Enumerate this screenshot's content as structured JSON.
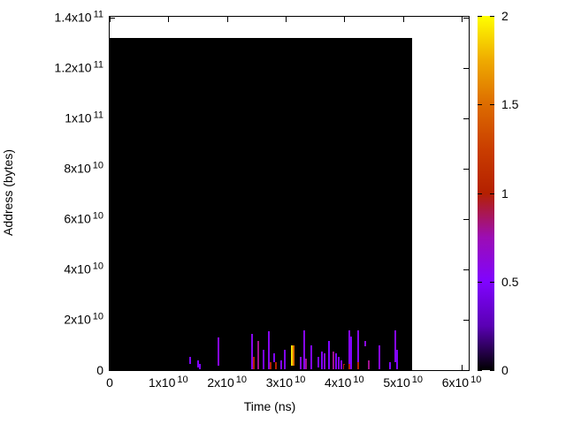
{
  "figure": {
    "xlabel": "Time (ns)",
    "ylabel": "Address (bytes)"
  },
  "chart_data": {
    "type": "heatmap",
    "title": "",
    "xlabel": "Time (ns)",
    "ylabel": "Address (bytes)",
    "xlim": [
      0,
      61200000000.0
    ],
    "ylim": [
      0,
      140400000000.0
    ],
    "grid": false,
    "legend": "colorbar-right",
    "background_color": "#ffffff",
    "zero_value_color": "#000000",
    "xticks": [
      {
        "v": 0,
        "base": "0",
        "exp": ""
      },
      {
        "v": 10000000000.0,
        "base": "1x10",
        "exp": "10"
      },
      {
        "v": 20000000000.0,
        "base": "2x10",
        "exp": "10"
      },
      {
        "v": 30000000000.0,
        "base": "3x10",
        "exp": "10"
      },
      {
        "v": 40000000000.0,
        "base": "4x10",
        "exp": "10"
      },
      {
        "v": 50000000000.0,
        "base": "5x10",
        "exp": "10"
      },
      {
        "v": 60000000000.0,
        "base": "6x10",
        "exp": "10"
      }
    ],
    "yticks": [
      {
        "v": 0,
        "base": "0",
        "exp": ""
      },
      {
        "v": 20000000000.0,
        "base": "2x10",
        "exp": "10"
      },
      {
        "v": 40000000000.0,
        "base": "4x10",
        "exp": "10"
      },
      {
        "v": 60000000000.0,
        "base": "6x10",
        "exp": "10"
      },
      {
        "v": 80000000000.0,
        "base": "8x10",
        "exp": "10"
      },
      {
        "v": 100000000000.0,
        "base": "1x10",
        "exp": "11"
      },
      {
        "v": 120000000000.0,
        "base": "1.2x10",
        "exp": "11"
      },
      {
        "v": 140000000000.0,
        "base": "1.4x10",
        "exp": "11"
      }
    ],
    "colorbar": {
      "range": [
        0,
        2
      ],
      "ticks": [
        {
          "v": 0,
          "label": "0"
        },
        {
          "v": 0.5,
          "label": "0.5"
        },
        {
          "v": 1,
          "label": "1"
        },
        {
          "v": 1.5,
          "label": "1.5"
        },
        {
          "v": 2,
          "label": "2"
        }
      ],
      "palette_stops": [
        "#000000",
        "#5A00B4",
        "#8004FF",
        "#9C0DB4",
        "#B42000",
        "#CA3E00",
        "#DD6C00",
        "#EFAB00",
        "#FFFF00"
      ]
    },
    "data_region": {
      "t0": 0,
      "t1": 51600000000.0,
      "a0": 0,
      "a1": 132000000000.0,
      "value": 0
    },
    "streaks": [
      {
        "t": 13700000000.0,
        "a0": 2300000000.0,
        "a1": 5400000000.0,
        "v": 0.5
      },
      {
        "t": 15000000000.0,
        "a0": 900000000.0,
        "a1": 4000000000.0,
        "v": 0.5
      },
      {
        "t": 15300000000.0,
        "a0": 200000000.0,
        "a1": 2600000000.0,
        "v": 0.5
      },
      {
        "t": 18500000000.0,
        "a0": 1600000000.0,
        "a1": 13100000000.0,
        "v": 0.55
      },
      {
        "t": 24200000000.0,
        "a0": 200000000.0,
        "a1": 14500000000.0,
        "v": 0.55
      },
      {
        "t": 24500000000.0,
        "a0": 200000000.0,
        "a1": 5100000000.0,
        "v": 1.0
      },
      {
        "t": 25300000000.0,
        "a0": 200000000.0,
        "a1": 11700000000.0,
        "v": 0.8
      },
      {
        "t": 26300000000.0,
        "a0": 200000000.0,
        "a1": 7900000000.0,
        "v": 0.45
      },
      {
        "t": 27200000000.0,
        "a0": 200000000.0,
        "a1": 15600000000.0,
        "v": 0.55
      },
      {
        "t": 27400000000.0,
        "a0": 200000000.0,
        "a1": 3000000000.0,
        "v": 1.0
      },
      {
        "t": 28100000000.0,
        "a0": 3000000000.0,
        "a1": 6800000000.0,
        "v": 0.5
      },
      {
        "t": 28400000000.0,
        "a0": 200000000.0,
        "a1": 3000000000.0,
        "v": 1.0
      },
      {
        "t": 29200000000.0,
        "a0": 200000000.0,
        "a1": 3700000000.0,
        "v": 0.5
      },
      {
        "t": 29900000000.0,
        "a0": 200000000.0,
        "a1": 7900000000.0,
        "v": 0.5
      },
      {
        "t": 31000000000.0,
        "a0": 1600000000.0,
        "a1": 10000000000.0,
        "v": 1.9
      },
      {
        "t": 31300000000.0,
        "a0": 1600000000.0,
        "a1": 10000000000.0,
        "v": 1.5
      },
      {
        "t": 32500000000.0,
        "a0": 200000000.0,
        "a1": 5400000000.0,
        "v": 0.55
      },
      {
        "t": 33200000000.0,
        "a0": 200000000.0,
        "a1": 15900000000.0,
        "v": 0.55
      },
      {
        "t": 33500000000.0,
        "a0": 200000000.0,
        "a1": 4700000000.0,
        "v": 0.8
      },
      {
        "t": 34300000000.0,
        "a0": 200000000.0,
        "a1": 10000000000.0,
        "v": 0.5
      },
      {
        "t": 35500000000.0,
        "a0": 1200000000.0,
        "a1": 5100000000.0,
        "v": 0.45
      },
      {
        "t": 36200000000.0,
        "a0": 200000000.0,
        "a1": 7500000000.0,
        "v": 0.5
      },
      {
        "t": 36700000000.0,
        "a0": 200000000.0,
        "a1": 6500000000.0,
        "v": 0.55
      },
      {
        "t": 37400000000.0,
        "a0": 200000000.0,
        "a1": 11700000000.0,
        "v": 0.5
      },
      {
        "t": 38200000000.0,
        "a0": 200000000.0,
        "a1": 7500000000.0,
        "v": 0.8
      },
      {
        "t": 38600000000.0,
        "a0": 200000000.0,
        "a1": 6500000000.0,
        "v": 0.5
      },
      {
        "t": 39100000000.0,
        "a0": 200000000.0,
        "a1": 5400000000.0,
        "v": 0.55
      },
      {
        "t": 39500000000.0,
        "a0": 200000000.0,
        "a1": 3700000000.0,
        "v": 0.5
      },
      {
        "t": 40000000000.0,
        "a0": 200000000.0,
        "a1": 2600000000.0,
        "v": 1.0
      },
      {
        "t": 40800000000.0,
        "a0": 200000000.0,
        "a1": 15900000000.0,
        "v": 0.55
      },
      {
        "t": 40900000000.0,
        "a0": 200000000.0,
        "a1": 2300000000.0,
        "v": 1.0
      },
      {
        "t": 41200000000.0,
        "a0": 200000000.0,
        "a1": 13500000000.0,
        "v": 0.5
      },
      {
        "t": 42300000000.0,
        "a0": 200000000.0,
        "a1": 15900000000.0,
        "v": 0.55
      },
      {
        "t": 42400000000.0,
        "a0": 200000000.0,
        "a1": 3000000000.0,
        "v": 1.0
      },
      {
        "t": 43500000000.0,
        "a0": 9300000000.0,
        "a1": 11700000000.0,
        "v": 0.6
      },
      {
        "t": 44200000000.0,
        "a0": 200000000.0,
        "a1": 3700000000.0,
        "v": 0.8
      },
      {
        "t": 46000000000.0,
        "a0": 200000000.0,
        "a1": 10000000000.0,
        "v": 0.55
      },
      {
        "t": 47800000000.0,
        "a0": 200000000.0,
        "a1": 3300000000.0,
        "v": 0.5
      },
      {
        "t": 48700000000.0,
        "a0": 3000000000.0,
        "a1": 15900000000.0,
        "v": 0.55
      },
      {
        "t": 49000000000.0,
        "a0": 200000000.0,
        "a1": 8200000000.0,
        "v": 0.5
      }
    ]
  }
}
